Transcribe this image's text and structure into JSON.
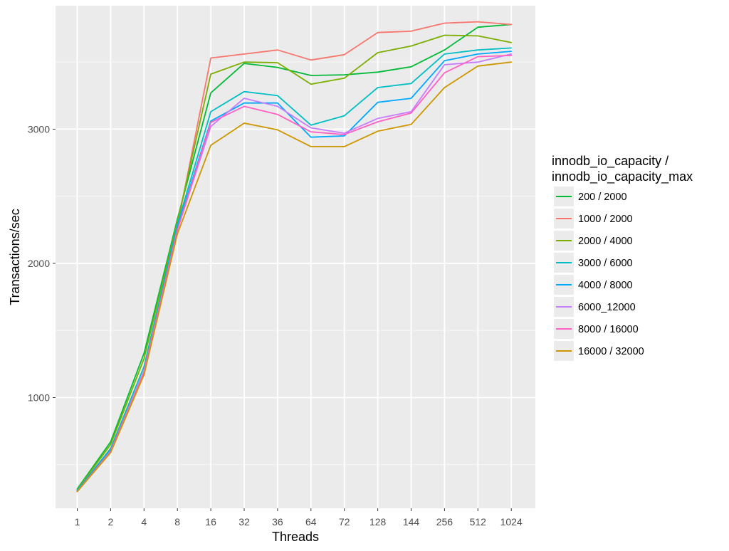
{
  "chart_data": {
    "type": "line",
    "xlabel": "Threads",
    "ylabel": "Transactions/sec",
    "categories": [
      "1",
      "2",
      "4",
      "8",
      "16",
      "32",
      "36",
      "64",
      "72",
      "128",
      "144",
      "256",
      "512",
      "1024"
    ],
    "ylim": [
      175,
      3920
    ],
    "yticks": [
      1000,
      2000,
      3000
    ],
    "grid": true,
    "background": "#ebebeb",
    "legend_position": "right",
    "legend_title": [
      "innodb_io_capacity /",
      "innodb_io_capacity_max"
    ],
    "series": [
      {
        "name": "200 / 2000",
        "color": "#00ba38",
        "values": [
          320,
          670,
          1330,
          2330,
          3270,
          3490,
          3460,
          3400,
          3405,
          3425,
          3465,
          3590,
          3760,
          3780
        ]
      },
      {
        "name": "1000 / 2000",
        "color": "#f8766d",
        "values": [
          305,
          620,
          1170,
          2280,
          3530,
          3560,
          3590,
          3515,
          3555,
          3720,
          3730,
          3790,
          3800,
          3780
        ]
      },
      {
        "name": "2000 / 4000",
        "color": "#7cae00",
        "values": [
          315,
          650,
          1290,
          2310,
          3410,
          3500,
          3495,
          3335,
          3380,
          3570,
          3620,
          3700,
          3695,
          3645
        ]
      },
      {
        "name": "3000 / 6000",
        "color": "#00bfc4",
        "values": [
          310,
          620,
          1230,
          2290,
          3130,
          3280,
          3250,
          3030,
          3100,
          3310,
          3340,
          3560,
          3590,
          3605
        ]
      },
      {
        "name": "4000 / 8000",
        "color": "#00a9ff",
        "values": [
          305,
          610,
          1190,
          2270,
          3060,
          3195,
          3195,
          2940,
          2950,
          3200,
          3230,
          3510,
          3560,
          3580
        ]
      },
      {
        "name": "6000_12000",
        "color": "#c77cff",
        "values": [
          300,
          600,
          1200,
          2250,
          3020,
          3230,
          3170,
          3010,
          2970,
          3080,
          3130,
          3480,
          3500,
          3560
        ]
      },
      {
        "name": "8000 / 16000",
        "color": "#ff61c3",
        "values": [
          300,
          600,
          1190,
          2250,
          3050,
          3170,
          3110,
          2980,
          2960,
          3055,
          3120,
          3420,
          3540,
          3550
        ]
      },
      {
        "name": "16000 / 32000",
        "color": "#cd9600",
        "values": [
          300,
          590,
          1170,
          2220,
          2880,
          3045,
          2995,
          2870,
          2870,
          2985,
          3035,
          3310,
          3470,
          3500
        ]
      }
    ]
  }
}
